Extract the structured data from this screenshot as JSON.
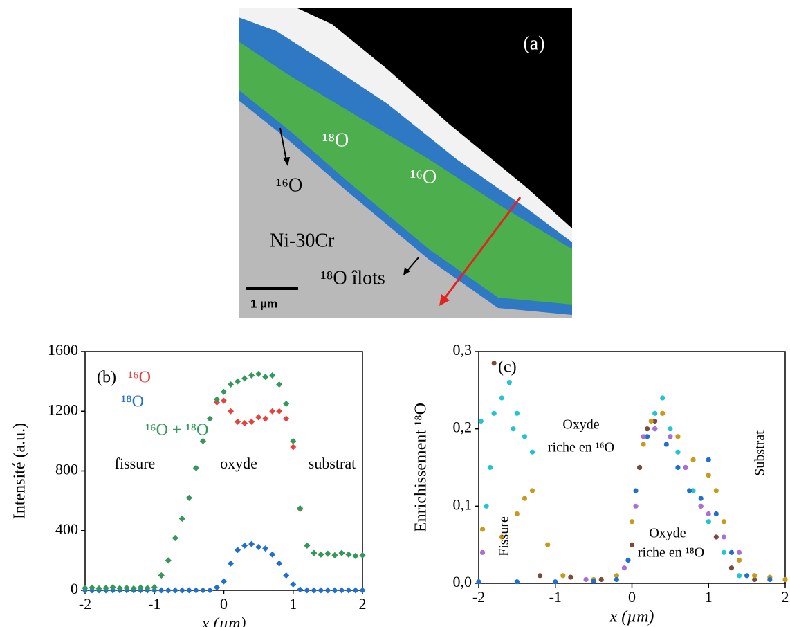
{
  "panel_a": {
    "label": "(a)",
    "texts": [
      "¹⁸O",
      "¹⁶O",
      "¹⁶O",
      "Ni-30Cr",
      "¹⁸O îlots"
    ],
    "scale_bar": "1 µm"
  },
  "chart_data": [
    {
      "type": "scatter",
      "label": "(b)",
      "xlabel": "x (µm)",
      "ylabel": "Intensité (a.u.)",
      "xlim": [
        -2,
        2
      ],
      "xticks": [
        -2,
        -1,
        0,
        1,
        2
      ],
      "ylim": [
        0,
        1600
      ],
      "yticks": [
        0,
        400,
        800,
        1200,
        1600
      ],
      "marker": "diamond",
      "x": [
        -2,
        -1.9,
        -1.8,
        -1.7,
        -1.6,
        -1.5,
        -1.4,
        -1.3,
        -1.2,
        -1.1,
        -1,
        -0.9,
        -0.8,
        -0.7,
        -0.6,
        -0.5,
        -0.4,
        -0.3,
        -0.2,
        -0.1,
        0,
        0.1,
        0.2,
        0.3,
        0.4,
        0.5,
        0.6,
        0.7,
        0.8,
        0.9,
        1,
        1.1,
        1.2,
        1.3,
        1.4,
        1.5,
        1.6,
        1.7,
        1.8,
        1.9,
        2
      ],
      "series": [
        {
          "name": "¹⁶O",
          "color": "#e8413c",
          "values": [
            15,
            18,
            12,
            15,
            20,
            14,
            16,
            12,
            18,
            15,
            20,
            100,
            200,
            350,
            480,
            620,
            820,
            1000,
            1150,
            1260,
            1270,
            1200,
            1130,
            1120,
            1130,
            1160,
            1150,
            1200,
            1200,
            1150,
            960,
            545,
            300,
            250,
            240,
            245,
            235,
            250,
            240,
            230,
            235
          ]
        },
        {
          "name": "¹⁸O",
          "color": "#1f6fd0",
          "values": [
            0,
            0,
            0,
            0,
            0,
            0,
            0,
            0,
            0,
            0,
            0,
            0,
            0,
            0,
            0,
            0,
            0,
            0,
            0,
            20,
            60,
            180,
            270,
            300,
            310,
            290,
            280,
            240,
            180,
            100,
            40,
            5,
            0,
            0,
            0,
            0,
            0,
            0,
            0,
            0,
            0
          ]
        },
        {
          "name": "¹⁶O + ¹⁸O",
          "color": "#2f9a5a",
          "values": [
            15,
            18,
            12,
            15,
            20,
            14,
            16,
            12,
            18,
            15,
            20,
            100,
            200,
            350,
            480,
            620,
            820,
            1000,
            1150,
            1280,
            1330,
            1380,
            1400,
            1420,
            1440,
            1450,
            1430,
            1440,
            1380,
            1250,
            1000,
            550,
            300,
            250,
            240,
            245,
            235,
            250,
            240,
            230,
            235
          ]
        }
      ],
      "annotations": [
        "fissure",
        "oxyde",
        "substrat"
      ]
    },
    {
      "type": "scatter",
      "label": "(c)",
      "xlabel": "x (µm)",
      "ylabel": "Enrichissement ¹⁸O",
      "xlim": [
        -2,
        2
      ],
      "xticks": [
        -2,
        -1,
        0,
        1,
        2
      ],
      "ylim": [
        0,
        0.3
      ],
      "yticks": [
        {
          "value": 0,
          "label": "0,0"
        },
        {
          "value": 0.1,
          "label": "0,1"
        },
        {
          "value": 0.2,
          "label": "0,2"
        },
        {
          "value": 0.3,
          "label": "0,3"
        }
      ],
      "marker": "circle",
      "series": [
        {
          "color": "#22c4d4",
          "x": [
            -1.97,
            -1.9,
            -1.8,
            -1.7,
            -1.6,
            -1.5,
            -1.4,
            -1.3,
            -1.85,
            -1.55,
            0.1,
            0.2,
            0.3,
            0.4,
            0.5,
            0.6,
            0.8,
            1,
            1.2,
            1.4
          ],
          "values": [
            0.21,
            0.1,
            0.22,
            0.24,
            0.26,
            0.22,
            0.19,
            0.17,
            0.15,
            0.2,
            0.15,
            0.2,
            0.22,
            0.24,
            0.2,
            0.17,
            0.12,
            0.08,
            0.04,
            0.01
          ]
        },
        {
          "color": "#7b4a3a",
          "x": [
            -1.8,
            -1.2,
            -0.8,
            -0.4,
            0,
            0.1,
            0.2,
            0.3,
            0.5,
            0.7,
            0.9,
            1.1,
            1.3,
            1.6
          ],
          "values": [
            0.285,
            0.01,
            0.008,
            0.005,
            0.05,
            0.15,
            0.2,
            0.21,
            0.19,
            0.15,
            0.1,
            0.06,
            0.02,
            0.005
          ]
        },
        {
          "color": "#c89a1a",
          "x": [
            -1.95,
            -1.7,
            -1.5,
            -1.4,
            -1.3,
            -1.1,
            -0.9,
            -0.5,
            -0.2,
            0,
            0.15,
            0.25,
            0.4,
            0.6,
            0.8,
            1,
            1.1,
            1.2,
            1.4,
            1.6,
            1.8,
            2
          ],
          "values": [
            0.07,
            0.06,
            0.09,
            0.11,
            0.12,
            0.05,
            0.01,
            0.005,
            0.01,
            0.08,
            0.18,
            0.21,
            0.22,
            0.19,
            0.16,
            0.14,
            0.12,
            0.08,
            0.03,
            0.01,
            0.008,
            0.005
          ]
        },
        {
          "color": "#1f6fd0",
          "x": [
            -2,
            -1.5,
            -1,
            -0.5,
            -0.2,
            -0.05,
            0.05,
            0.2,
            0.3,
            0.45,
            0.6,
            0.75,
            0.9,
            1,
            1.1,
            1.3,
            1.5,
            1.8
          ],
          "values": [
            0.002,
            0.002,
            0.002,
            0.003,
            0.005,
            0.03,
            0.12,
            0.19,
            0.2,
            0.18,
            0.15,
            0.12,
            0.11,
            0.16,
            0.09,
            0.04,
            0.01,
            0.005
          ]
        },
        {
          "color": "#a86fd6",
          "x": [
            -1.95,
            -0.6,
            -0.1,
            0.05,
            0.15,
            0.3,
            0.5,
            0.7,
            0.9,
            1,
            1.2,
            1.4
          ],
          "values": [
            0.04,
            0.005,
            0.02,
            0.1,
            0.19,
            0.2,
            0.19,
            0.15,
            0.1,
            0.09,
            0.06,
            0.04
          ]
        }
      ],
      "annotations": [
        "Oxyde",
        "riche en ¹⁶O",
        "Fissure",
        "Substrat",
        "Oxyde",
        "riche en ¹⁸O"
      ]
    }
  ]
}
